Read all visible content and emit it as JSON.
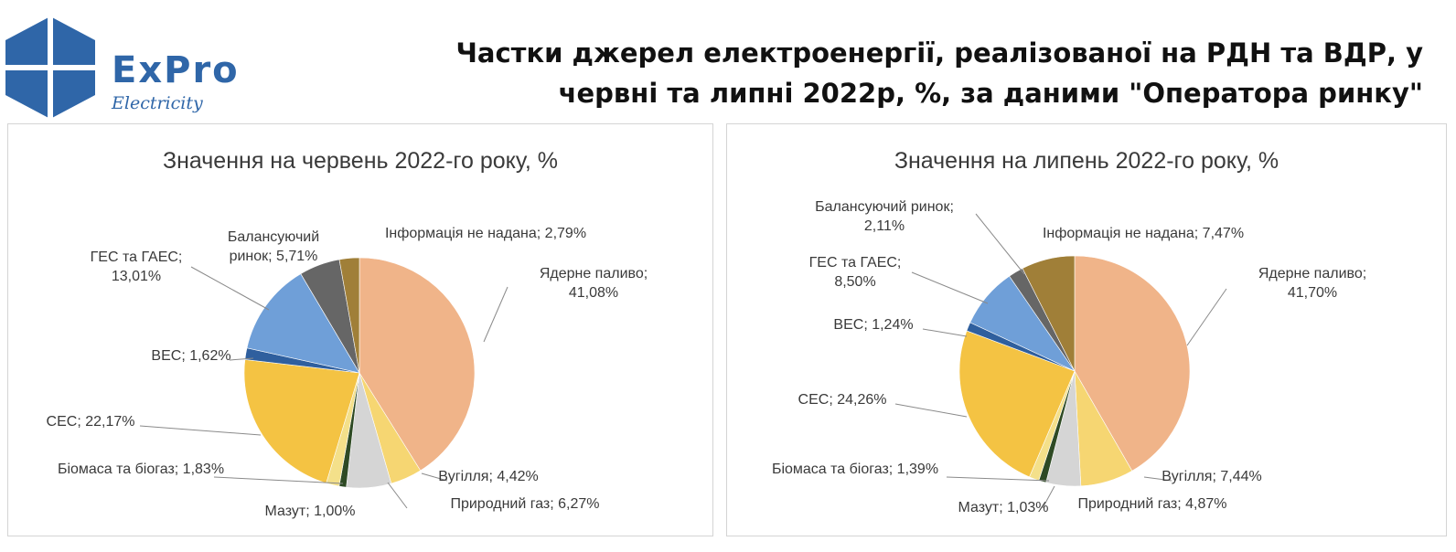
{
  "logo": {
    "word": "ExPro",
    "sub": "Electricity"
  },
  "title": {
    "line1": "Частки джерел електроенергії, реалізованої на РДН та ВДР, у",
    "line2": "червні та липні 2022р, %, за даними \"Оператора ринку\""
  },
  "colors": {
    "nuclear": "#f0b489",
    "coal": "#f6d672",
    "gas": "#d5d5d5",
    "fuel_oil": "#2e4a24",
    "biomass": "#f4e08a",
    "solar": "#f4c343",
    "wind": "#2f5f9e",
    "hydro": "#6f9fd8",
    "balancing": "#666666",
    "no_info": "#a07f38"
  },
  "chart_data": [
    {
      "type": "pie",
      "title": "Значення на червень 2022-го року, %",
      "slices": [
        {
          "key": "nuclear",
          "value": 41.08,
          "label_lines": [
            "Ядерне паливо;",
            "41,08%"
          ]
        },
        {
          "key": "coal",
          "value": 4.42,
          "label_lines": [
            "Вугілля; 4,42%"
          ]
        },
        {
          "key": "gas",
          "value": 6.27,
          "label_lines": [
            "Природний газ; 6,27%"
          ]
        },
        {
          "key": "fuel_oil",
          "value": 1.0,
          "label_lines": [
            "Мазут; 1,00%"
          ]
        },
        {
          "key": "biomass",
          "value": 1.83,
          "label_lines": [
            "Біомаса та біогаз; 1,83%"
          ]
        },
        {
          "key": "solar",
          "value": 22.17,
          "label_lines": [
            "СЕС; 22,17%"
          ]
        },
        {
          "key": "wind",
          "value": 1.62,
          "label_lines": [
            "ВЕС; 1,62%"
          ]
        },
        {
          "key": "hydro",
          "value": 13.01,
          "label_lines": [
            "ГЕС та ГАЕС;",
            "13,01%"
          ]
        },
        {
          "key": "balancing",
          "value": 5.71,
          "label_lines": [
            "Балансуючий",
            "ринок; 5,71%"
          ]
        },
        {
          "key": "no_info",
          "value": 2.79,
          "label_lines": [
            "Інформація не надана; 2,79%"
          ]
        }
      ]
    },
    {
      "type": "pie",
      "title": "Значення на липень 2022-го року, %",
      "slices": [
        {
          "key": "nuclear",
          "value": 41.7,
          "label_lines": [
            "Ядерне паливо;",
            "41,70%"
          ]
        },
        {
          "key": "coal",
          "value": 7.44,
          "label_lines": [
            "Вугілля; 7,44%"
          ]
        },
        {
          "key": "gas",
          "value": 4.87,
          "label_lines": [
            "Природний газ; 4,87%"
          ]
        },
        {
          "key": "fuel_oil",
          "value": 1.03,
          "label_lines": [
            "Мазут; 1,03%"
          ]
        },
        {
          "key": "biomass",
          "value": 1.39,
          "label_lines": [
            "Біомаса та біогаз; 1,39%"
          ]
        },
        {
          "key": "solar",
          "value": 24.26,
          "label_lines": [
            "СЕС; 24,26%"
          ]
        },
        {
          "key": "wind",
          "value": 1.24,
          "label_lines": [
            "ВЕС; 1,24%"
          ]
        },
        {
          "key": "hydro",
          "value": 8.5,
          "label_lines": [
            "ГЕС та ГАЕС;",
            "8,50%"
          ]
        },
        {
          "key": "balancing",
          "value": 2.11,
          "label_lines": [
            "Балансуючий ринок;",
            "2,11%"
          ]
        },
        {
          "key": "no_info",
          "value": 7.47,
          "label_lines": [
            "Інформація не надана; 7,47%"
          ]
        }
      ]
    }
  ]
}
